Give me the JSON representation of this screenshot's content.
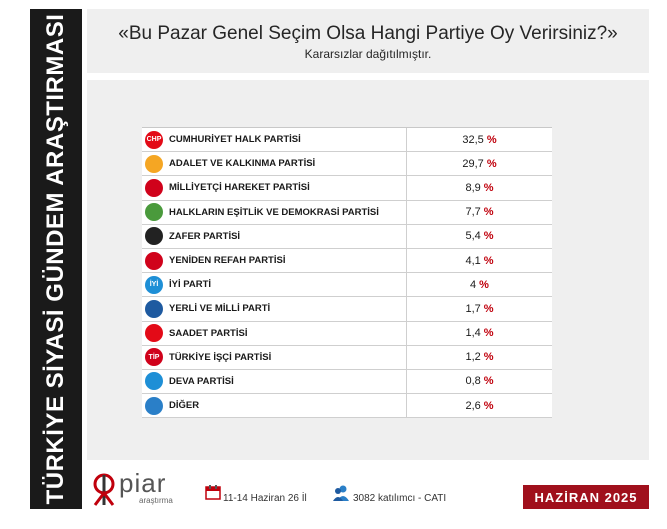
{
  "sidebar": {
    "title": "TÜRKİYE SİYASİ GÜNDEM ARAŞTIRMASI"
  },
  "header": {
    "title": "«Bu Pazar Genel Seçim Olsa Hangi Partiye Oy Verirsiniz?»",
    "subtitle": "Kararsızlar dağıtılmıştır."
  },
  "table": {
    "rows": [
      {
        "name": "CUMHURİYET  HALK PARTİSİ",
        "value": "32,5",
        "pct": "%",
        "logo_color": "#e30a17",
        "logo_text": "CHP",
        "icon": "chp-logo-icon"
      },
      {
        "name": "ADALET VE KALKINMA PARTİSİ",
        "value": "29,7",
        "pct": "%",
        "logo_color": "#f5a623",
        "logo_text": "",
        "icon": "akp-bulb-logo-icon"
      },
      {
        "name": "MİLLİYETÇİ HAREKET PARTİSİ",
        "value": "8,9",
        "pct": "%",
        "logo_color": "#d0021b",
        "logo_text": "",
        "icon": "mhp-crescents-logo-icon"
      },
      {
        "name": "HALKLARIN EŞİTLİK VE DEMOKRASİ PARTİSİ",
        "value": "7,7",
        "pct": "%",
        "logo_color": "#4a9a3c",
        "logo_text": "",
        "icon": "dem-tree-logo-icon"
      },
      {
        "name": "ZAFER PARTİSİ",
        "value": "5,4",
        "pct": "%",
        "logo_color": "#222222",
        "logo_text": "",
        "icon": "zafer-logo-icon"
      },
      {
        "name": "YENİDEN REFAH PARTİSİ",
        "value": "4,1",
        "pct": "%",
        "logo_color": "#d0021b",
        "logo_text": "",
        "icon": "yrp-logo-icon"
      },
      {
        "name": "İYİ PARTİ",
        "value": "4",
        "pct": "%",
        "logo_color": "#1e8fd6",
        "logo_text": "İYİ",
        "icon": "iyi-logo-icon"
      },
      {
        "name": "YERLİ VE MİLLİ PARTİ",
        "value": "1,7",
        "pct": "%",
        "logo_color": "#1e5aa0",
        "logo_text": "",
        "icon": "ymp-logo-icon"
      },
      {
        "name": "SAADET PARTİSİ",
        "value": "1,4",
        "pct": "%",
        "logo_color": "#e30a17",
        "logo_text": "",
        "icon": "saadet-logo-icon"
      },
      {
        "name": "TÜRKİYE İŞÇİ PARTİSİ",
        "value": "1,2",
        "pct": "%",
        "logo_color": "#d0021b",
        "logo_text": "TİP",
        "icon": "tip-logo-icon"
      },
      {
        "name": "DEVA PARTİSİ",
        "value": "0,8",
        "pct": "%",
        "logo_color": "#1e8fd6",
        "logo_text": "",
        "icon": "deva-drop-logo-icon"
      },
      {
        "name": "DİĞER",
        "value": "2,6",
        "pct": "%",
        "logo_color": "#2a7fc8",
        "logo_text": "",
        "icon": "people-icon"
      }
    ]
  },
  "footer": {
    "brand": "piar",
    "brand_sub": "araştırma",
    "date": "11-14 Haziran 26 İl",
    "sample": "3082 katılımcı - CATI",
    "month": "HAZİRAN 2025"
  },
  "colors": {
    "accent": "#c0000c",
    "badge": "#a0101c",
    "sidebar": "#1a1a1a",
    "panel": "#efefef"
  }
}
